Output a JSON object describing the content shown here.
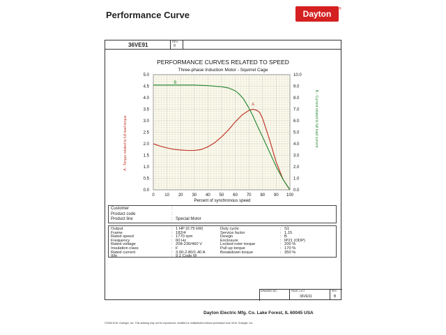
{
  "header": {
    "title": "Performance Curve",
    "logo": "Dayton",
    "part_number": "36VE91",
    "rev_label": "REV.",
    "rev_value": "B"
  },
  "chart_data": {
    "type": "line",
    "title": "PERFORMANCE CURVES RELATED TO SPEED",
    "subtitle": "Three-phase Induction Motor - Squirrel Cage",
    "xlabel": "Percent of synchronous speed",
    "ylabel_left": "A - Torque related to full load torque",
    "ylabel_right": "B - Current related to full load current",
    "xlim": [
      0,
      100
    ],
    "ylim_left": [
      0,
      5
    ],
    "ylim_right": [
      0,
      10
    ],
    "x_ticks": [
      "0",
      "10",
      "20",
      "30",
      "40",
      "50",
      "60",
      "70",
      "80",
      "90",
      "100"
    ],
    "y_ticks_left": [
      "0.0",
      "0.5",
      "1.0",
      "1.5",
      "2.0",
      "2.5",
      "3.0",
      "3.5",
      "4.0",
      "4.5",
      "5.0"
    ],
    "y_ticks_right": [
      "0.0",
      "1.0",
      "2.0",
      "3.0",
      "4.0",
      "5.0",
      "6.0",
      "7.0",
      "8.0",
      "9.0",
      "10.0"
    ],
    "grid": true,
    "series": [
      {
        "name": "A",
        "axis": "left",
        "color": "#c0392b",
        "x": [
          0,
          5,
          10,
          15,
          20,
          25,
          30,
          35,
          40,
          45,
          50,
          55,
          60,
          65,
          70,
          73,
          76,
          78,
          80,
          85,
          90,
          95,
          100
        ],
        "y": [
          2.0,
          1.9,
          1.82,
          1.76,
          1.73,
          1.71,
          1.71,
          1.75,
          1.87,
          2.05,
          2.3,
          2.6,
          2.95,
          3.25,
          3.45,
          3.5,
          3.45,
          3.35,
          3.1,
          2.2,
          1.2,
          0.45,
          0.0
        ]
      },
      {
        "name": "B",
        "axis": "right",
        "color": "#2e8b3a",
        "x": [
          0,
          5,
          10,
          20,
          30,
          40,
          45,
          50,
          55,
          60,
          63,
          66,
          70,
          73,
          76,
          80,
          85,
          90,
          95,
          100
        ],
        "y": [
          9.1,
          9.1,
          9.1,
          9.1,
          9.1,
          9.05,
          9.0,
          8.95,
          8.85,
          8.6,
          8.3,
          7.9,
          7.1,
          6.4,
          5.6,
          4.6,
          3.3,
          2.0,
          0.9,
          0.0
        ]
      }
    ]
  },
  "customer_block": {
    "rows": [
      {
        "label": "Customer",
        "value": ""
      },
      {
        "label": "Product code",
        "value": ""
      },
      {
        "label": "Product line",
        "value": "Special Motor"
      }
    ]
  },
  "specs": {
    "left": [
      {
        "label": "Output",
        "value": "1 HP (0.75 kW)"
      },
      {
        "label": "Frame",
        "value": "182/4"
      },
      {
        "label": "Rated speed",
        "value": "1770 rpm"
      },
      {
        "label": "Frequency",
        "value": "60 Hz"
      },
      {
        "label": "Rated voltage",
        "value": "208-230/460 V"
      },
      {
        "label": "Insulation class",
        "value": "F"
      },
      {
        "label": "Rated current",
        "value": "3.00-2.80/1.40 A"
      },
      {
        "label": "Il/In",
        "value": "9.1    Code M"
      }
    ],
    "right": [
      {
        "label": "Duty cycle",
        "value": "S1"
      },
      {
        "label": "Service factor",
        "value": "1.15"
      },
      {
        "label": "Design",
        "value": "B"
      },
      {
        "label": "Enclosure",
        "value": "IP21 (ODP)"
      },
      {
        "label": "Locked rotor torque",
        "value": "200 %"
      },
      {
        "label": "Pull up torque",
        "value": "170 %"
      },
      {
        "label": "Breakdown torque",
        "value": "350 %"
      }
    ]
  },
  "title_block": {
    "drawing_no_label": "DRAWING NO.",
    "page_label": "PAGE  1  of  2",
    "rev_label": "REV",
    "drawing_no": "36VE91",
    "rev": "B"
  },
  "footer": {
    "company": "Dayton Electric Mfg. Co.  Lake Forest, IL  60045  USA",
    "copyright": "©2006 W.W. Grainger, Inc.  This drawing may not be reproduced, modified or redistributed without permission from W.W. Grainger, Inc."
  }
}
